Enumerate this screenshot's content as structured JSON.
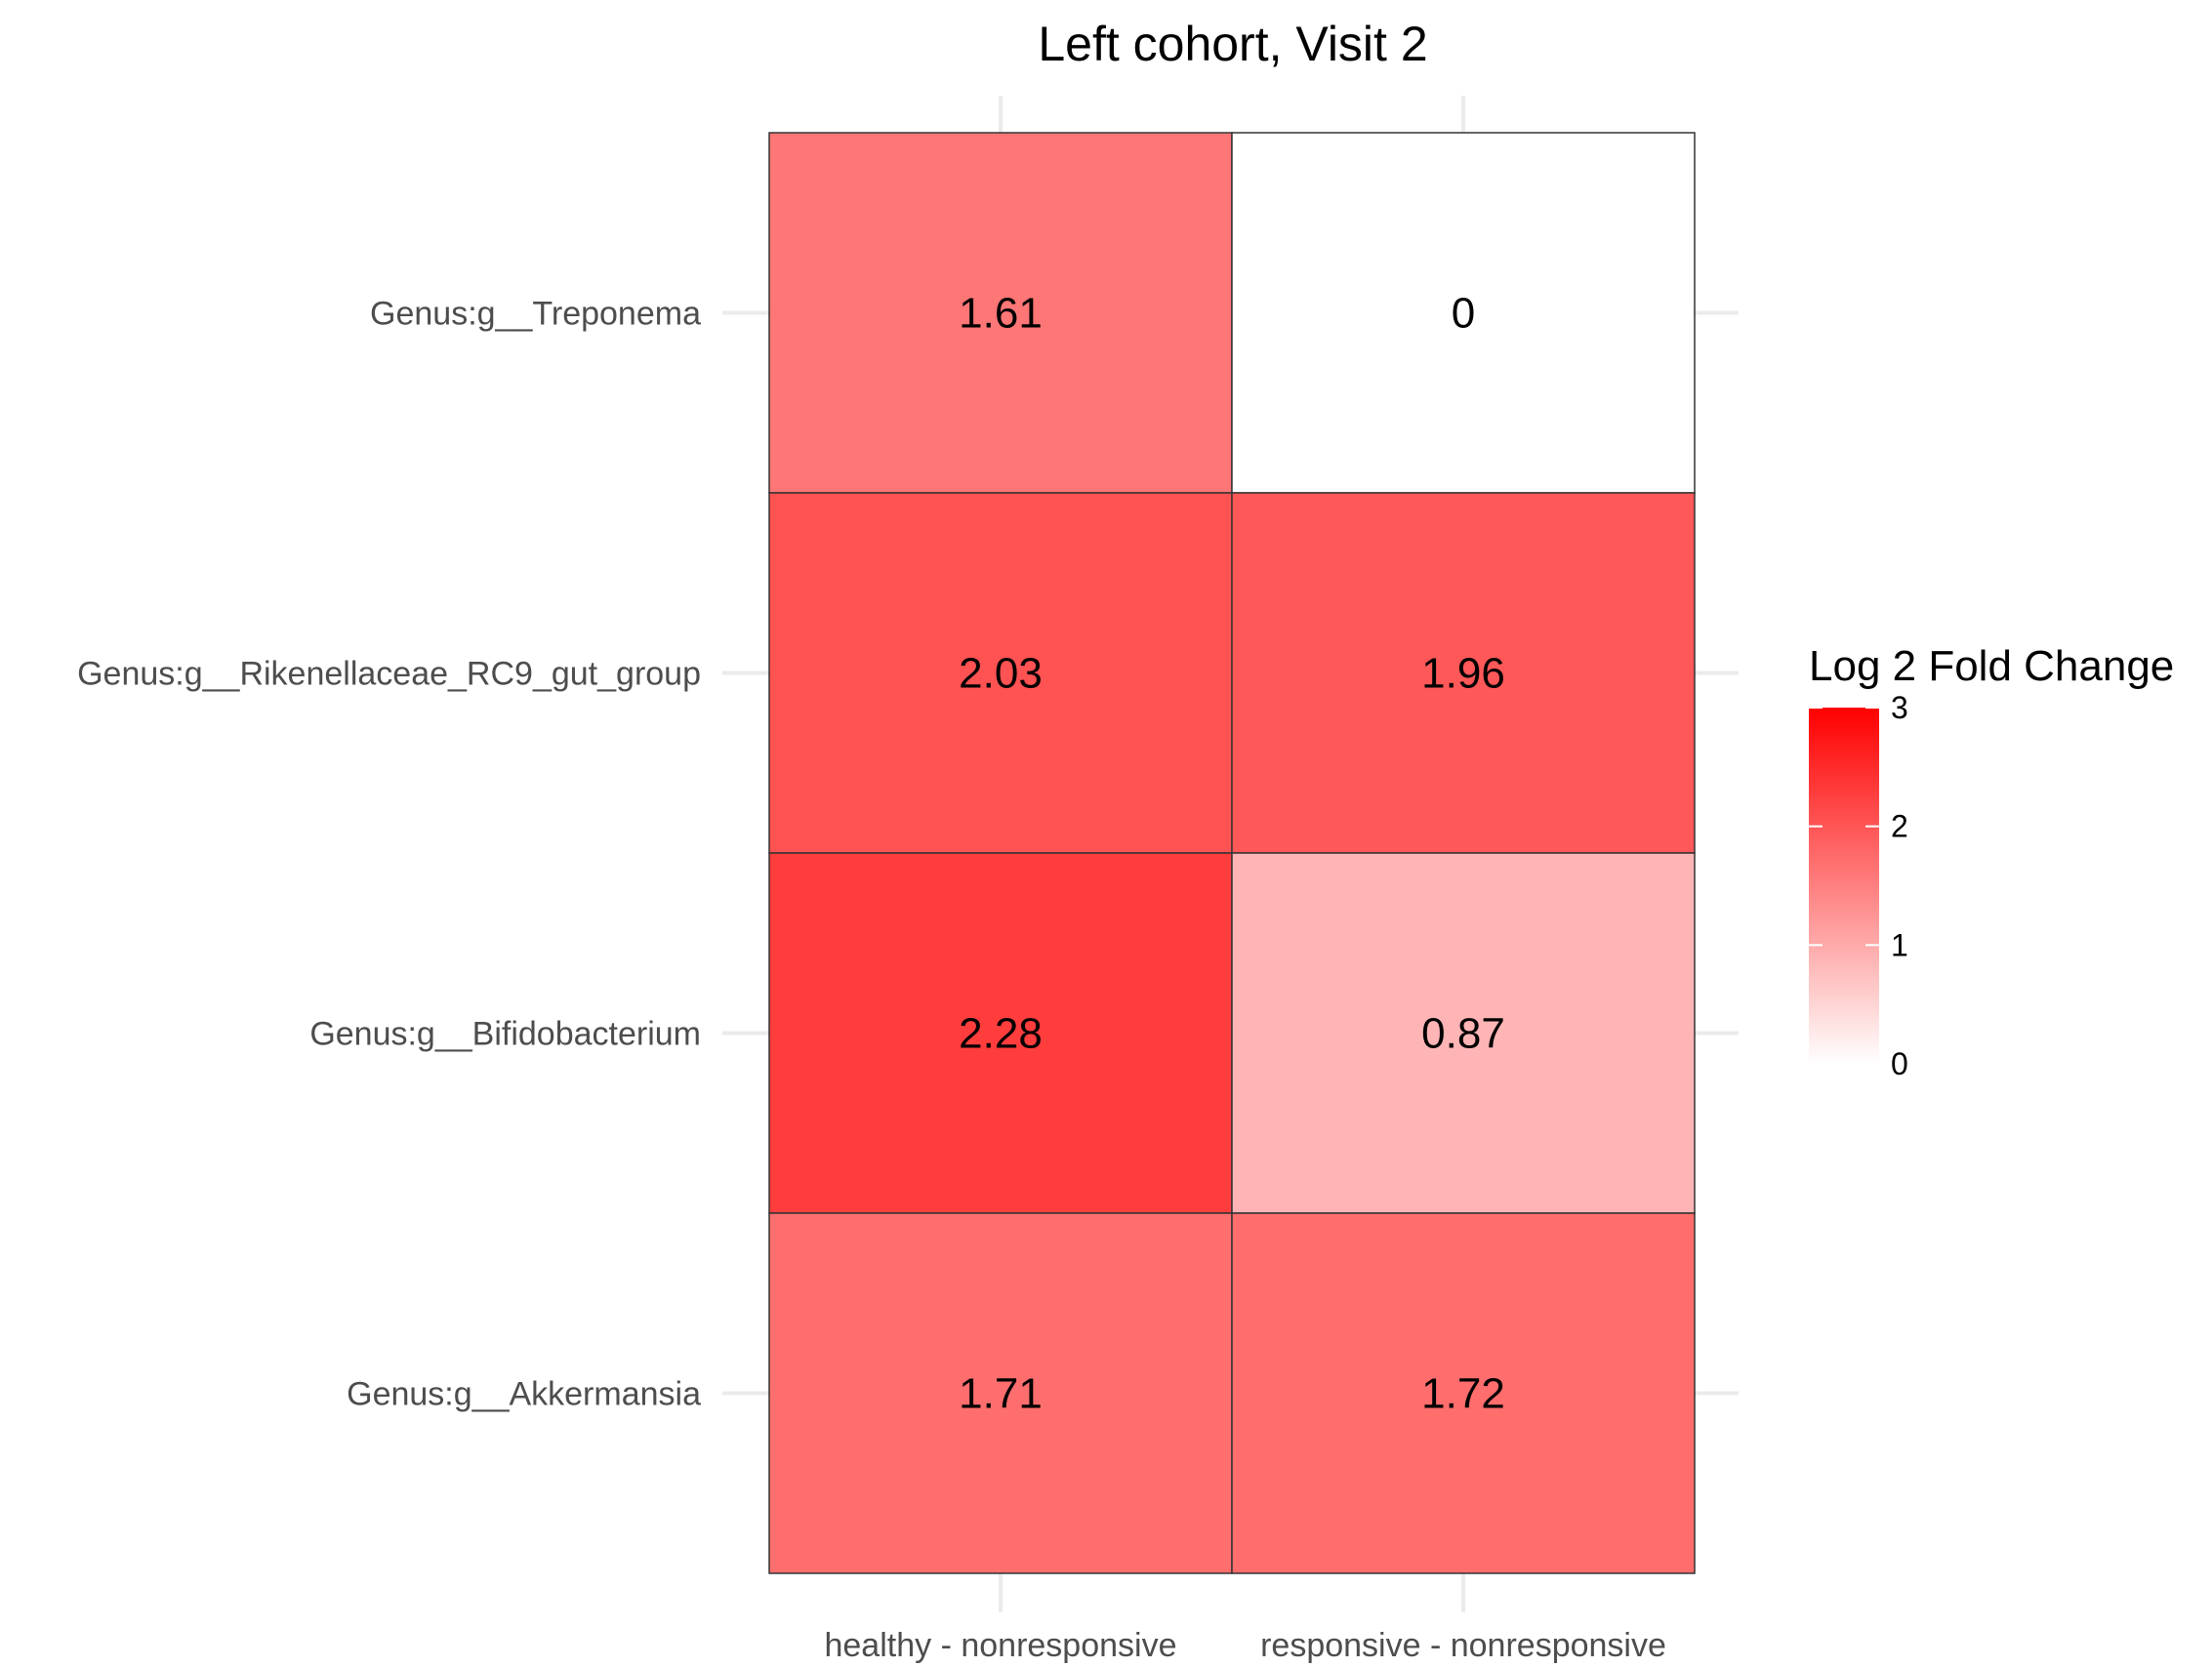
{
  "chart_data": {
    "type": "heatmap",
    "title": "Left cohort, Visit 2",
    "xlabel": "",
    "ylabel": "",
    "x_categories": [
      "healthy - nonresponsive",
      "responsive - nonresponsive"
    ],
    "y_categories": [
      "Genus:g__Treponema",
      "Genus:g__Rikenellaceae_RC9_gut_group",
      "Genus:g__Bifidobacterium",
      "Genus:g__Akkermansia"
    ],
    "values": [
      [
        1.61,
        0
      ],
      [
        2.03,
        1.96
      ],
      [
        2.28,
        0.87
      ],
      [
        1.71,
        1.72
      ]
    ],
    "value_labels": [
      [
        "1.61",
        "0"
      ],
      [
        "2.03",
        "1.96"
      ],
      [
        "2.28",
        "0.87"
      ],
      [
        "1.71",
        "1.72"
      ]
    ],
    "legend": {
      "title": "Log 2 Fold Change",
      "range": [
        0,
        3
      ],
      "ticks": [
        0,
        1,
        2,
        3
      ],
      "tick_labels": [
        "0",
        "1",
        "2",
        "3"
      ],
      "low_color": "#ffffff",
      "high_color": "#ff0000",
      "placement": "right"
    },
    "grid": true
  }
}
